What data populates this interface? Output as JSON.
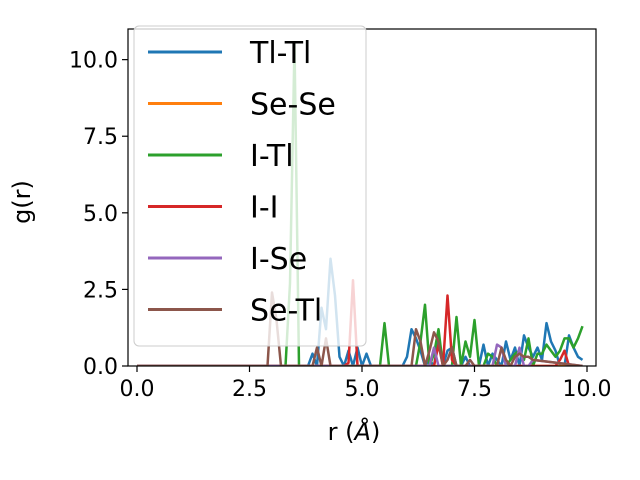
{
  "chart_data": {
    "type": "line",
    "xlabel": "r (",
    "xlabel_unit": "Å",
    "xlabel_close": ")",
    "ylabel": "g(r)",
    "xlim": [
      -0.2,
      10.2
    ],
    "ylim": [
      0,
      11
    ],
    "xticks": [
      "0.0",
      "2.5",
      "5.0",
      "7.5",
      "10.0"
    ],
    "yticks": [
      "0.0",
      "2.5",
      "5.0",
      "7.5",
      "10.0"
    ],
    "grid": false,
    "legend_position": "upper-left",
    "series": [
      {
        "name": "Tl-Tl",
        "color": "#1f77b4",
        "x": [
          0,
          3.8,
          3.9,
          4.0,
          4.1,
          4.2,
          4.3,
          4.4,
          4.5,
          4.6,
          4.7,
          4.8,
          4.9,
          5.0,
          5.1,
          5.2,
          5.9,
          6.0,
          6.1,
          6.2,
          6.3,
          6.4,
          6.5,
          6.6,
          6.7,
          6.8,
          6.9,
          7.0,
          7.1,
          7.2,
          7.3,
          7.4,
          7.5,
          7.6,
          7.7,
          7.8,
          7.9,
          8.0,
          8.1,
          8.2,
          8.3,
          8.4,
          8.5,
          8.6,
          8.7,
          8.8,
          8.9,
          9.0,
          9.1,
          9.2,
          9.3,
          9.4,
          9.5,
          9.6,
          9.7,
          9.8,
          9.9
        ],
        "y": [
          0,
          0,
          0.4,
          0,
          1.9,
          1.2,
          3.5,
          2.3,
          0.3,
          0,
          0.5,
          0,
          0.6,
          0,
          0.4,
          0,
          0,
          0.3,
          1.2,
          0.9,
          0.5,
          0,
          0.2,
          0,
          0.9,
          0,
          0.5,
          0.6,
          0,
          0,
          0.3,
          0,
          0,
          0,
          0.7,
          0,
          0.4,
          0.2,
          0,
          0.8,
          0.2,
          0.6,
          0,
          1.0,
          0.6,
          0.3,
          0.6,
          0.2,
          1.4,
          0.8,
          0.5,
          0,
          0,
          1.0,
          0.6,
          0.3,
          0.2
        ]
      },
      {
        "name": "Se-Se",
        "color": "#ff7f0e",
        "x": [
          0,
          9.9
        ],
        "y": [
          0,
          0
        ]
      },
      {
        "name": "I-Tl",
        "color": "#2ca02c",
        "x": [
          0,
          3.3,
          3.4,
          3.5,
          3.6,
          3.7,
          3.8,
          3.9,
          4.0,
          4.1,
          4.2,
          5.4,
          5.5,
          5.6,
          6.0,
          6.1,
          6.2,
          6.3,
          6.4,
          6.5,
          6.6,
          6.7,
          6.8,
          6.9,
          7.0,
          7.1,
          7.2,
          7.3,
          7.4,
          7.5,
          7.6,
          7.7,
          7.8,
          7.9,
          8.0,
          8.1,
          8.2,
          8.3,
          8.4,
          8.5,
          8.6,
          8.7,
          8.8,
          8.9,
          9.0,
          9.1,
          9.2,
          9.3,
          9.4,
          9.5,
          9.6,
          9.7,
          9.8,
          9.9
        ],
        "y": [
          0,
          0,
          2.7,
          10.5,
          0,
          0,
          0,
          0,
          0,
          0,
          0,
          0,
          1.4,
          0,
          0,
          0,
          0,
          0.8,
          2.0,
          0,
          0.4,
          1.2,
          0,
          0,
          0,
          1.6,
          0,
          0.8,
          0.3,
          1.5,
          0,
          0,
          0.4,
          0.3,
          0,
          0,
          0,
          0.2,
          0.4,
          0.5,
          0.2,
          0.9,
          0,
          0.4,
          0.4,
          0.7,
          0.5,
          0.3,
          0.5,
          0.9,
          0.9,
          0.6,
          0.9,
          1.3
        ]
      },
      {
        "name": "I-I",
        "color": "#d62728",
        "x": [
          0,
          4.6,
          4.7,
          4.8,
          4.9,
          6.6,
          6.7,
          6.8,
          6.9,
          7.0,
          7.1,
          9.3,
          9.4,
          9.5,
          9.6
        ],
        "y": [
          0,
          0,
          0.1,
          2.8,
          0,
          0,
          0.7,
          0,
          2.3,
          0.2,
          0,
          0,
          0.2,
          0.5,
          0
        ]
      },
      {
        "name": "I-Se",
        "color": "#9467bd",
        "x": [
          0,
          6.5,
          6.6,
          6.7,
          6.8,
          7.9,
          8.0,
          8.1,
          8.2,
          8.4,
          8.5,
          8.6,
          8.7,
          8.8,
          9.9
        ],
        "y": [
          0,
          0,
          0.6,
          0,
          0,
          0,
          0.7,
          0.6,
          0,
          0,
          0.6,
          0,
          0,
          0.2,
          0
        ]
      },
      {
        "name": "Se-Tl",
        "color": "#8c564b",
        "x": [
          0,
          2.9,
          3.0,
          3.1,
          3.2,
          3.9,
          4.0,
          4.1,
          4.2,
          4.3,
          6.1,
          6.2,
          6.3,
          6.4,
          6.5,
          6.6,
          6.7,
          6.8,
          6.9,
          7.0,
          7.1,
          7.2,
          7.3,
          7.4,
          7.5,
          8.0,
          8.1,
          8.2,
          8.3,
          8.4,
          8.5,
          8.6,
          8.7,
          8.8,
          9.9
        ],
        "y": [
          0,
          0,
          2.4,
          1.5,
          0,
          0,
          0.6,
          0,
          0.9,
          0,
          0,
          1.2,
          0.8,
          0,
          0.5,
          1.1,
          0.8,
          0,
          0.2,
          0.6,
          0,
          0,
          0,
          0.2,
          0,
          0,
          0.6,
          0.2,
          0,
          0.3,
          0.4,
          0.3,
          0.3,
          0.2,
          0
        ]
      }
    ]
  }
}
